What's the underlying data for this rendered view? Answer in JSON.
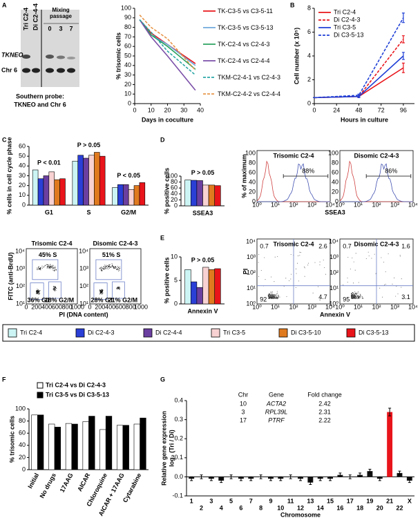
{
  "panels": [
    "A",
    "B",
    "C",
    "D",
    "E",
    "F",
    "G"
  ],
  "blot": {
    "lanes": [
      "Tri C2-4",
      "Di C2-4-4"
    ],
    "mixing": "Mixing passage",
    "passages": [
      0,
      3,
      7
    ],
    "bands": [
      "TKNEO",
      "Chr 6"
    ],
    "caption": [
      "Southern probe:",
      "TKNEO and Chr 6"
    ]
  },
  "legend": [
    {
      "name": "Tri C2-4",
      "color": "#ccf4f4"
    },
    {
      "name": "Di C2-4-3",
      "color": "#2a3fd6"
    },
    {
      "name": "Di C2-4-4",
      "color": "#6b3fa0"
    },
    {
      "name": "Tri C3-5",
      "color": "#f8d2d2"
    },
    {
      "name": "Di C3-5-10",
      "color": "#e07a1f"
    },
    {
      "name": "Di C3-5-13",
      "color": "#e8141a"
    }
  ],
  "flow_c": {
    "ylabel": "FITC (anti-BrdU)",
    "xlabel": "PI (DNA content)",
    "yticks": [
      "10¹",
      "10²",
      "10³",
      "10⁴"
    ],
    "xticks": [
      0,
      200,
      400,
      600,
      800,
      1000
    ],
    "plots": [
      {
        "title": "Trisomic C2-4",
        "s": "45% S",
        "g1": "36% G1",
        "g2m": "18% G2/M"
      },
      {
        "title": "Disomic C2-4-3",
        "s": "51% S",
        "g1": "28% G1",
        "g2m": "21% G2/M"
      }
    ]
  },
  "flow_d": {
    "ylabel": "% of maximum",
    "xlabel": "SSEA3",
    "yticks": [
      0,
      20,
      40,
      60,
      80,
      100
    ],
    "xticks": [
      "10⁰",
      "10¹",
      "10²",
      "10³",
      "10⁴"
    ],
    "plots": [
      {
        "title": "Trisomic C2-4",
        "gate": "88%"
      },
      {
        "title": "Disomic C2-4-3",
        "gate": "86%"
      }
    ]
  },
  "flow_e": {
    "ylabel": "PI",
    "xlabel": "Annexin V",
    "yticks": [
      "10⁰",
      "10¹",
      "10²",
      "10³",
      "10⁴"
    ],
    "xticks": [
      "10⁰",
      "10¹",
      "10²",
      "10³",
      "10⁴"
    ],
    "plots": [
      {
        "title": "Trisomic C2-4",
        "quadrants": [
          0.7,
          2.6,
          92,
          4.7
        ]
      },
      {
        "title": "Disomic C2-4-3",
        "quadrants": [
          0.7,
          1.6,
          95,
          3.1
        ]
      }
    ]
  },
  "chart_data": [
    {
      "type": "line",
      "ylabel": "% trisomic cells",
      "xlabel": "Days in coculture",
      "legend": "right",
      "x": [
        3,
        10,
        20,
        37
      ],
      "xlim": [
        0,
        40
      ],
      "xticks": [
        0,
        10,
        20,
        30,
        40
      ],
      "ylim": [
        0,
        100
      ],
      "yticks": [
        0,
        10,
        20,
        30,
        40,
        50,
        60,
        70,
        80,
        90,
        100
      ],
      "series": [
        {
          "name": "TK-C3-5 vs C3-5-11",
          "color": "#e8141a",
          "values": [
            88,
            74,
            62,
            42
          ]
        },
        {
          "name": "TK-C3-5 vs C3-5-13",
          "color": "#6fa8dc",
          "values": [
            88,
            72,
            62,
            40
          ]
        },
        {
          "name": "TK-C2-4 vs C2-4-3",
          "color": "#2ca25f",
          "values": [
            88,
            72,
            60,
            36
          ]
        },
        {
          "name": "TK-C2-4 vs C2-4-4",
          "color": "#7b4fa8",
          "values": [
            88,
            70,
            50,
            14
          ]
        },
        {
          "name": "TKM-C2-4-1 vs C2-4-3",
          "color": "#2aa6a6",
          "dash": true,
          "values": [
            88,
            75,
            55,
            30
          ]
        },
        {
          "name": "TKM-C2-4-2 vs C2-4-4",
          "color": "#e8964a",
          "dash": true,
          "values": [
            93,
            80,
            68,
            35
          ]
        }
      ]
    },
    {
      "type": "line",
      "ylabel": "Cell number (x 10⁵)",
      "xlabel": "Hours in culture",
      "legend": "upper left",
      "x": [
        0,
        48,
        96
      ],
      "xlim": [
        0,
        108
      ],
      "xticks": [
        0,
        24,
        48,
        72,
        96
      ],
      "ylim": [
        0,
        8
      ],
      "yticks": [
        0,
        2,
        4,
        6,
        8
      ],
      "series": [
        {
          "name": "Tri C2-4",
          "color": "#e8141a",
          "values": [
            0.5,
            0.6,
            3.0
          ],
          "errors": [
            0,
            0.1,
            0.4
          ]
        },
        {
          "name": "Di C2-4-3",
          "color": "#e8141a",
          "dash": true,
          "values": [
            0.5,
            0.6,
            5.4
          ],
          "errors": [
            0,
            0.1,
            0.3
          ]
        },
        {
          "name": "Tri C3-5",
          "color": "#1f3fd6",
          "values": [
            0.5,
            0.6,
            4.0
          ],
          "errors": [
            0,
            0.1,
            0.3
          ]
        },
        {
          "name": "Di C3-5-13",
          "color": "#1f3fd6",
          "dash": true,
          "values": [
            0.5,
            0.7,
            7.2
          ],
          "errors": [
            0,
            0.1,
            0.4
          ]
        }
      ]
    },
    {
      "type": "bar",
      "ylabel": "% cells in cell cycle phase",
      "categories": [
        "G1",
        "S",
        "G2/M"
      ],
      "annotations": [
        "P < 0.01",
        "P > 0.05",
        "P < 0.05"
      ],
      "ylim": [
        0,
        60
      ],
      "yticks": [
        0,
        10,
        20,
        30,
        40,
        50,
        60
      ],
      "series": [
        {
          "color": "#ccf4f4",
          "values": [
            36,
            45,
            18
          ]
        },
        {
          "color": "#2a3fd6",
          "values": [
            27,
            51,
            21
          ]
        },
        {
          "color": "#6b3fa0",
          "values": [
            30,
            48,
            21
          ]
        },
        {
          "color": "#f8d2d2",
          "values": [
            34,
            51,
            16
          ]
        },
        {
          "color": "#e07a1f",
          "values": [
            26,
            54,
            20
          ]
        },
        {
          "color": "#e8141a",
          "values": [
            27,
            50,
            23
          ]
        }
      ]
    },
    {
      "type": "bar",
      "ylabel": "% positive cells",
      "categories": [
        "SSEA3"
      ],
      "annotations": [
        "P > 0.05"
      ],
      "ylim": [
        0,
        100
      ],
      "yticks": [
        0,
        20,
        40,
        60,
        80,
        100
      ],
      "series": [
        {
          "color": "#ccf4f4",
          "values": [
            87
          ]
        },
        {
          "color": "#2a3fd6",
          "values": [
            86
          ]
        },
        {
          "color": "#6b3fa0",
          "values": [
            85
          ]
        },
        {
          "color": "#f8d2d2",
          "values": [
            70
          ]
        },
        {
          "color": "#e07a1f",
          "values": [
            70
          ]
        },
        {
          "color": "#e8141a",
          "values": [
            68
          ]
        }
      ]
    },
    {
      "type": "bar",
      "ylabel": "% positive cells",
      "categories": [
        "Annexin V"
      ],
      "annotations": [
        "P > 0.05"
      ],
      "ylim": [
        0,
        10
      ],
      "yticks": [
        0,
        5,
        10
      ],
      "series": [
        {
          "color": "#ccf4f4",
          "values": [
            7.3
          ]
        },
        {
          "color": "#2a3fd6",
          "values": [
            4.7
          ]
        },
        {
          "color": "#6b3fa0",
          "values": [
            3.5
          ]
        },
        {
          "color": "#f8d2d2",
          "values": [
            7.8
          ]
        },
        {
          "color": "#e07a1f",
          "values": [
            7.3
          ]
        },
        {
          "color": "#e8141a",
          "values": [
            7.5
          ]
        }
      ]
    },
    {
      "type": "bar",
      "ylabel": "% trisomic cells",
      "legend": "top",
      "rotate_labels": true,
      "categories": [
        "Initial",
        "No drugs",
        "17AAG",
        "AICAR",
        "Chloroquine",
        "AICAR + 17AAG",
        "Cytarabine"
      ],
      "ylim": [
        0,
        100
      ],
      "yticks": [
        0,
        20,
        40,
        60,
        80,
        100
      ],
      "series": [
        {
          "name": "Tri C2-4 vs Di C2-4-3",
          "color": "#ffffff",
          "values": [
            90,
            75,
            76,
            79,
            66,
            73,
            75
          ]
        },
        {
          "name": "Tri C3-5 vs Di C3-5-13",
          "color": "#000000",
          "values": [
            90,
            70,
            75,
            88,
            88,
            73,
            85
          ]
        }
      ]
    },
    {
      "type": "bar",
      "ylabel": [
        "Relative gene expression",
        "log₂ (Tri / Di)"
      ],
      "xlabel": "Chromosome",
      "label_rows": 2,
      "categories": [
        "1",
        "2",
        "3",
        "4",
        "5",
        "6",
        "7",
        "8",
        "9",
        "10",
        "11",
        "12",
        "13",
        "14",
        "15",
        "16",
        "17",
        "18",
        "19",
        "20",
        "21",
        "22",
        "X"
      ],
      "ylim": [
        -0.1,
        0.4
      ],
      "yticks": [
        -0.1,
        {
          "value": 0,
          "label": "0.0"
        },
        0.1,
        0.2,
        0.3,
        0.4
      ],
      "table": {
        "columns": [
          "Chr",
          "Gene",
          "Fold change"
        ],
        "rows": [
          [
            10,
            "ACTA2",
            2.42
          ],
          [
            3,
            "RPL39L",
            2.31
          ],
          [
            17,
            "PTRF",
            2.22
          ]
        ]
      },
      "series": [
        {
          "values": [
            -0.01,
            0.0,
            -0.01,
            -0.02,
            0.0,
            -0.01,
            -0.01,
            0.0,
            -0.01,
            -0.01,
            0.0,
            -0.01,
            -0.03,
            -0.01,
            -0.01,
            0.01,
            0.0,
            0.01,
            0.03,
            -0.01,
            0.34,
            0.02,
            -0.02
          ],
          "errors": [
            0.01,
            0.01,
            0.01,
            0.01,
            0.01,
            0.01,
            0.01,
            0.01,
            0.01,
            0.01,
            0.01,
            0.01,
            0.01,
            0.01,
            0.01,
            0.01,
            0.01,
            0.01,
            0.01,
            0.01,
            0.02,
            0.01,
            0.01
          ],
          "colors": [
            "#111111",
            "#111111",
            "#111111",
            "#111111",
            "#111111",
            "#111111",
            "#111111",
            "#111111",
            "#111111",
            "#111111",
            "#111111",
            "#111111",
            "#111111",
            "#111111",
            "#111111",
            "#111111",
            "#111111",
            "#111111",
            "#111111",
            "#111111",
            "#e8141a",
            "#111111",
            "#111111"
          ]
        }
      ]
    }
  ]
}
